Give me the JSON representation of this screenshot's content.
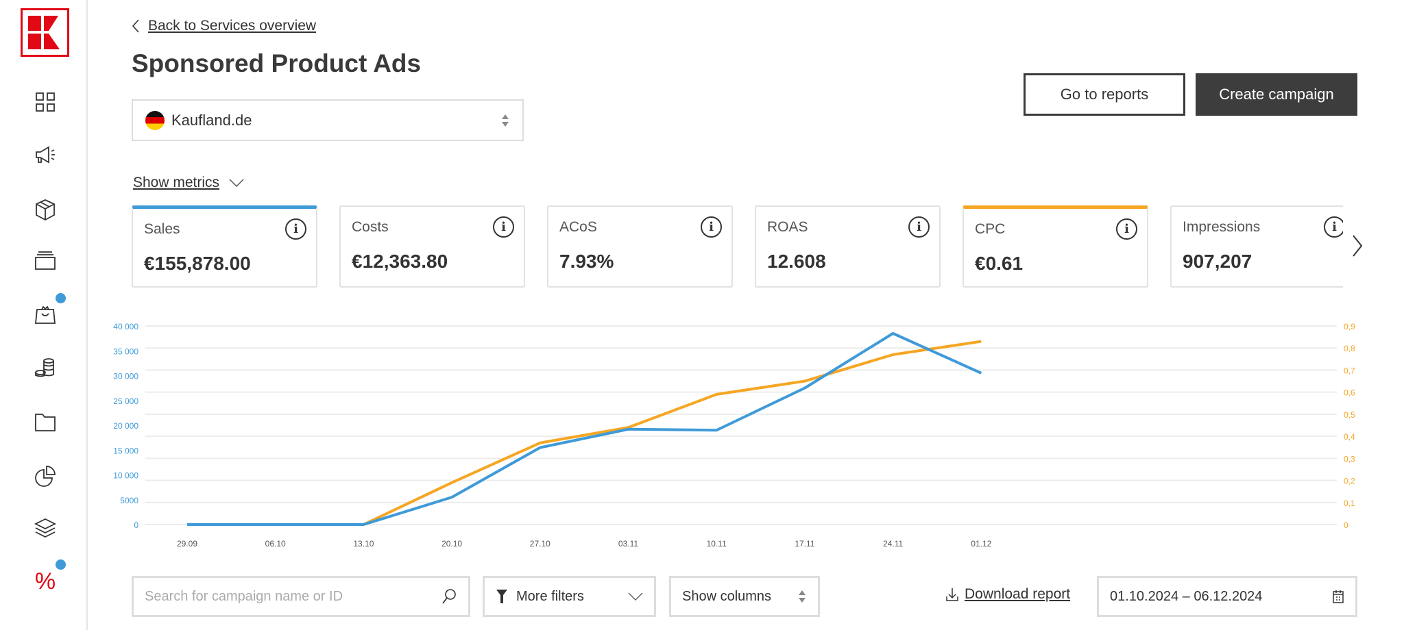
{
  "sidebar": {
    "logo_text": "K",
    "items": [
      {
        "icon": "dashboard-grid-icon"
      },
      {
        "icon": "megaphone-icon"
      },
      {
        "icon": "package-icon"
      },
      {
        "icon": "stack-icon"
      },
      {
        "icon": "shopping-bag-icon",
        "badge": true
      },
      {
        "icon": "coins-icon"
      },
      {
        "icon": "folder-icon"
      },
      {
        "icon": "pie-chart-icon"
      },
      {
        "icon": "layers-icon"
      },
      {
        "icon": "percent-icon",
        "badge": true,
        "active": true
      }
    ]
  },
  "header": {
    "back_label": "Back to Services overview",
    "title": "Sponsored Product Ads",
    "marketplace": "Kaufland.de",
    "go_reports_label": "Go to reports",
    "create_campaign_label": "Create campaign"
  },
  "metrics": {
    "toggle_label": "Show metrics",
    "cards": [
      {
        "label": "Sales",
        "value": "€155,878.00",
        "selected_color": "#3f9ad8"
      },
      {
        "label": "Costs",
        "value": "€12,363.80"
      },
      {
        "label": "ACoS",
        "value": "7.93%"
      },
      {
        "label": "ROAS",
        "value": "12.608"
      },
      {
        "label": "CPC",
        "value": "€0.61",
        "selected_color": "#f5a623"
      },
      {
        "label": "Impressions",
        "value": "907,207"
      }
    ]
  },
  "chart_data": {
    "type": "line",
    "x": [
      "29.09",
      "06.10",
      "13.10",
      "20.10",
      "27.10",
      "03.11",
      "10.11",
      "17.11",
      "24.11",
      "01.12"
    ],
    "y_left": {
      "ticks": [
        "0",
        "5000",
        "10 000",
        "15 000",
        "20 000",
        "25 000",
        "30 000",
        "35 000",
        "40 000"
      ],
      "range": [
        0,
        40000
      ],
      "color": "#3f9ad8"
    },
    "y_right": {
      "ticks": [
        "0",
        "0,1",
        "0,2",
        "0,3",
        "0,4",
        "0,5",
        "0,6",
        "0,7",
        "0,8",
        "0,9"
      ],
      "range": [
        0,
        0.9
      ],
      "color": "#f5a623"
    },
    "grid": true,
    "series": [
      {
        "axis": "left",
        "color": "#3f9ad8",
        "values": [
          0,
          0,
          0,
          5500,
          15500,
          19200,
          19000,
          27500,
          38500,
          30500
        ]
      },
      {
        "axis": "right",
        "color": "#f5a623",
        "values": [
          0,
          0,
          0,
          0.19,
          0.37,
          0.44,
          0.59,
          0.65,
          0.77,
          0.83
        ]
      }
    ]
  },
  "toolbar": {
    "search_placeholder": "Search for campaign name or ID",
    "filters_label": "More filters",
    "columns_label": "Show columns",
    "download_label": "Download report",
    "date_range": "01.10.2024 – 06.12.2024"
  }
}
